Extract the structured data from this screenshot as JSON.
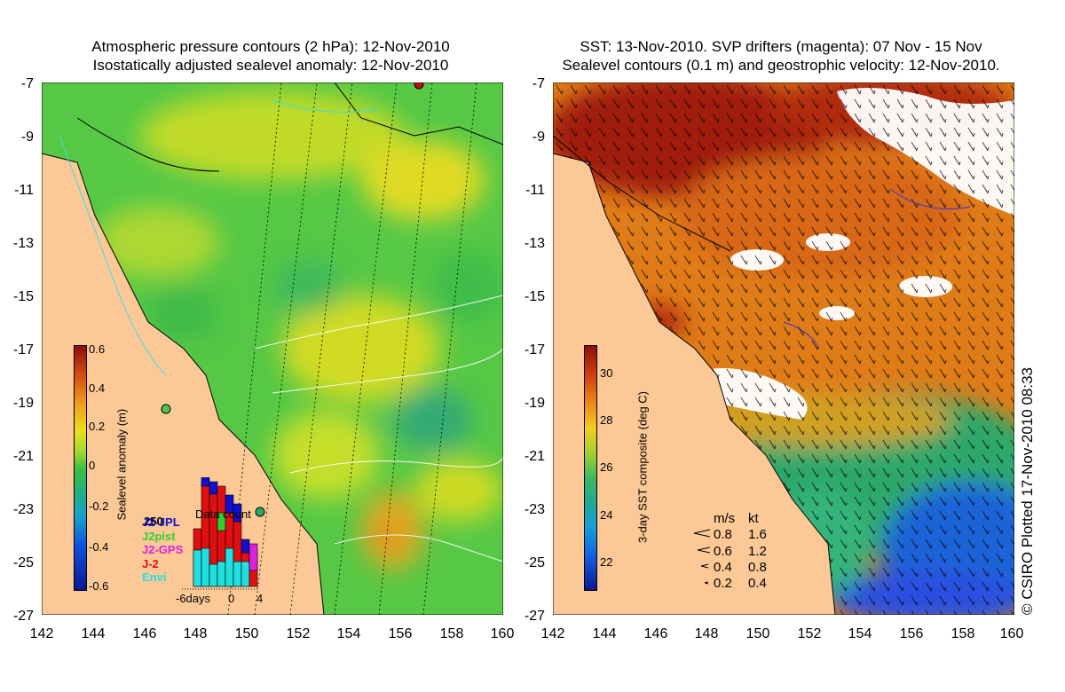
{
  "left_panel": {
    "title_line1": "Atmospheric pressure contours (2 hPa): 12-Nov-2010",
    "title_line2": "Isostatically adjusted sealevel anomaly: 12-Nov-2010",
    "colorbar": {
      "title": "Sealevel anomaly (m)",
      "ticks": [
        "0.6",
        "0.4",
        "0.2",
        "0",
        "-0.2",
        "-0.4",
        "-0.6"
      ]
    },
    "inset": {
      "title": "Data count",
      "max_label": "250",
      "x_ticks": [
        "-6days",
        "0",
        "4"
      ],
      "satellites": [
        {
          "name": "J2-JPL",
          "color": "#1010d0"
        },
        {
          "name": "J2pist",
          "color": "#30d030"
        },
        {
          "name": "J2-GPS",
          "color": "#e020e0"
        },
        {
          "name": "J-2",
          "color": "#e01010"
        },
        {
          "name": "Envi",
          "color": "#20e0e0"
        }
      ]
    }
  },
  "right_panel": {
    "title_line1": "SST: 13-Nov-2010. SVP drifters (magenta): 07 Nov - 15 Nov",
    "title_line2": "Sealevel contours (0.1 m) and geostrophic velocity: 12-Nov-2010.",
    "colorbar": {
      "title": "3-day SST composite (deg C)",
      "ticks": [
        "30",
        "28",
        "26",
        "24",
        "22"
      ]
    },
    "velocity_legend": {
      "header_ms": "m/s",
      "header_kt": "kt",
      "rows": [
        {
          "ms": "0.8",
          "kt": "1.6"
        },
        {
          "ms": "0.6",
          "kt": "1.2"
        },
        {
          "ms": "0.4",
          "kt": "0.8"
        },
        {
          "ms": "0.2",
          "kt": "0.4"
        }
      ]
    }
  },
  "axes": {
    "y_ticks": [
      "-7",
      "-9",
      "-11",
      "-13",
      "-15",
      "-17",
      "-19",
      "-21",
      "-23",
      "-25",
      "-27"
    ],
    "x_ticks": [
      "142",
      "144",
      "146",
      "148",
      "150",
      "152",
      "154",
      "156",
      "158",
      "160"
    ]
  },
  "credit": "© CSIRO Plotted 17-Nov-2010 08:33",
  "colors": {
    "land": "#fcc896",
    "anomaly_green": "#4cc83c",
    "anomaly_yellow": "#e8e01c",
    "sst_red": "#a01c08",
    "sst_orange": "#e07c18",
    "sst_green": "#2ea86a",
    "sst_blue": "#1e64d8",
    "cloud": "#ffffff"
  }
}
